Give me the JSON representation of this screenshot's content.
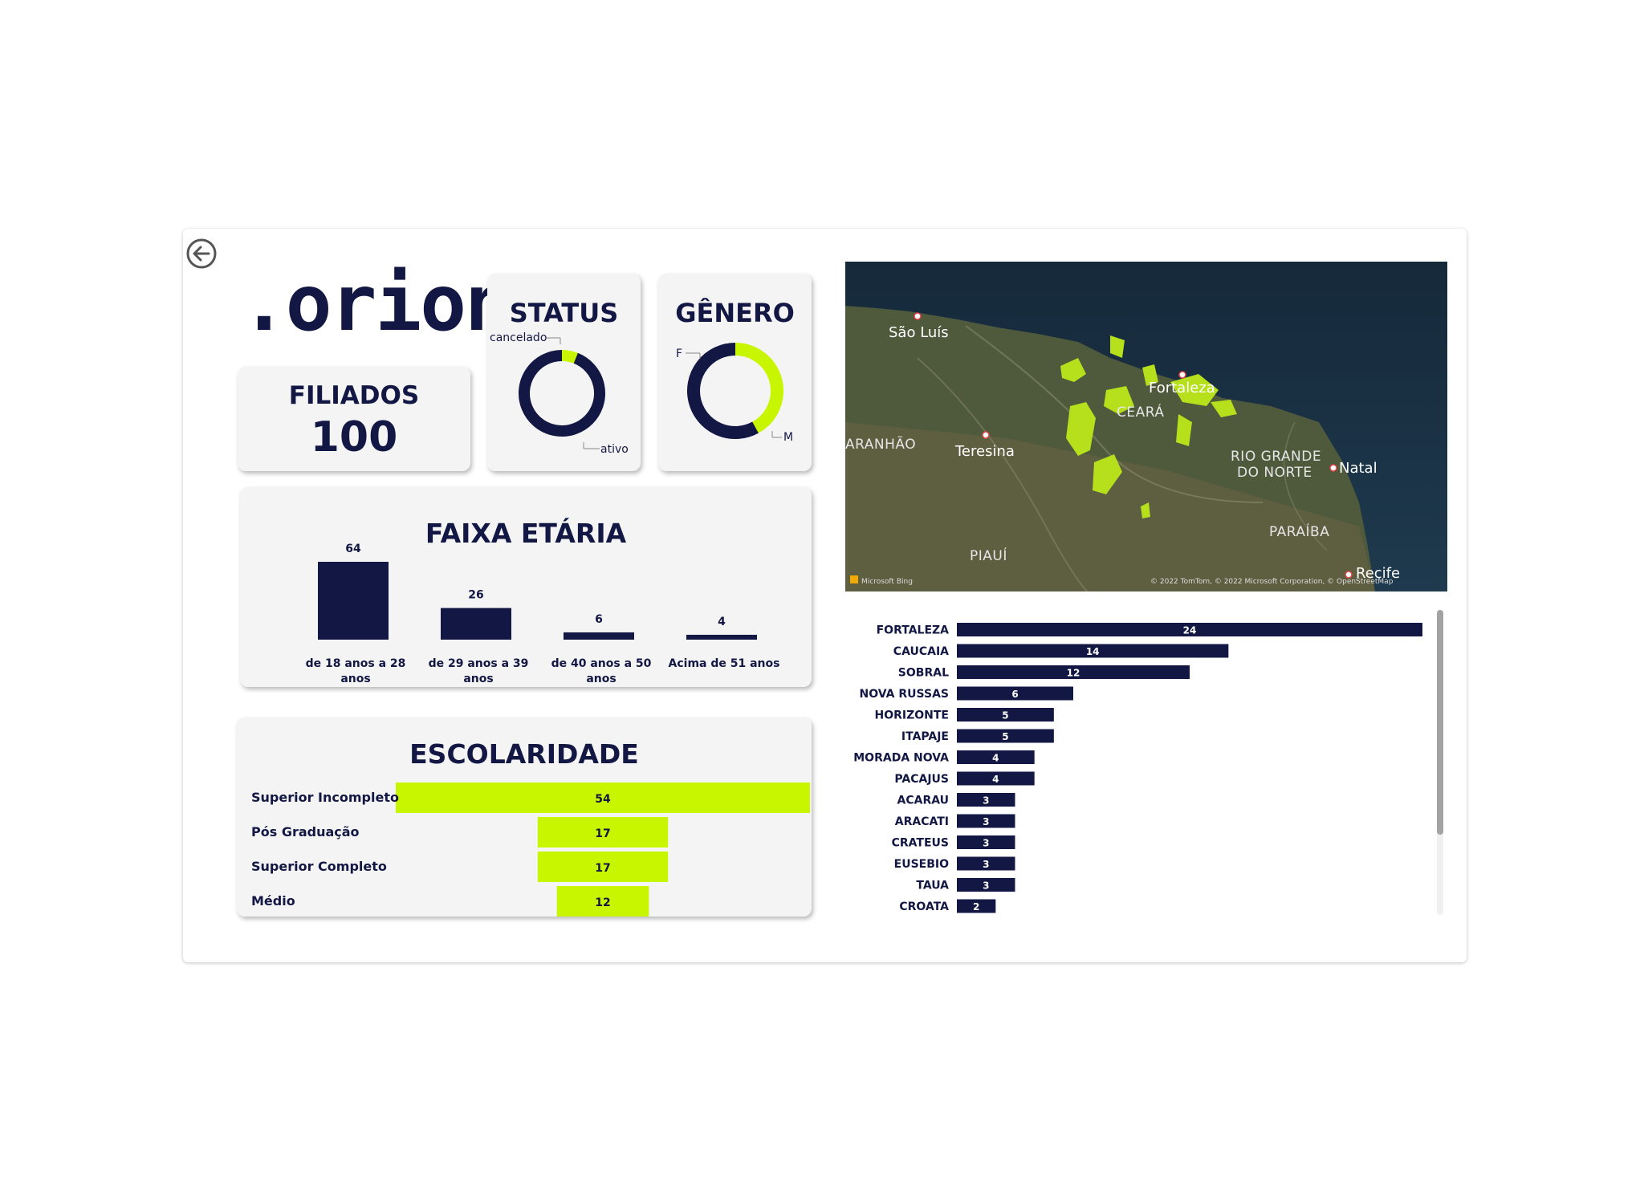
{
  "logo": {
    "text": ".orion"
  },
  "filiados": {
    "title": "FILIADOS",
    "value": "100"
  },
  "status": {
    "title": "STATUS",
    "chart_data": {
      "type": "donut",
      "slices": [
        {
          "label": "cancelado",
          "value": 6,
          "color": "#c8f500"
        },
        {
          "label": "ativo",
          "value": 94,
          "color": "#121744"
        }
      ]
    }
  },
  "genero": {
    "title": "GÊNERO",
    "chart_data": {
      "type": "donut",
      "slices": [
        {
          "label": "F",
          "value": 42,
          "color": "#c8f500"
        },
        {
          "label": "M",
          "value": 58,
          "color": "#121744"
        }
      ]
    }
  },
  "faixa": {
    "title": "FAIXA ETÁRIA",
    "chart_data": {
      "type": "bar",
      "categories": [
        "de 18 anos a 28 anos",
        "de 29 anos a 39 anos",
        "de 40 anos a 50 anos",
        "Acima de 51 anos"
      ],
      "values": [
        64,
        26,
        6,
        4
      ],
      "color": "#121744"
    }
  },
  "escolaridade": {
    "title": "ESCOLARIDADE",
    "chart_data": {
      "type": "funnel",
      "categories": [
        "Superior Incompleto",
        "Pós Graduação",
        "Superior Completo",
        "Médio"
      ],
      "values": [
        54,
        17,
        17,
        12
      ],
      "color": "#c8f500"
    }
  },
  "map": {
    "cities": [
      "São Luís",
      "Fortaleza",
      "Teresina",
      "Natal",
      "Recife"
    ],
    "states": [
      "CEARÁ",
      "ARANHÃO",
      "RIO GRANDE",
      "DO NORTE",
      "PARAÍBA",
      "PIAUÍ"
    ],
    "attribution": "© 2022 TomTom, © 2022 Microsoft Corporation, © OpenStreetMap",
    "brand": "Microsoft Bing"
  },
  "cidades": {
    "chart_data": {
      "type": "bar",
      "orientation": "horizontal",
      "categories": [
        "FORTALEZA",
        "CAUCAIA",
        "SOBRAL",
        "NOVA RUSSAS",
        "HORIZONTE",
        "ITAPAJE",
        "MORADA NOVA",
        "PACAJUS",
        "ACARAU",
        "ARACATI",
        "CRATEUS",
        "EUSEBIO",
        "TAUA",
        "CROATA"
      ],
      "values": [
        24,
        14,
        12,
        6,
        5,
        5,
        4,
        4,
        3,
        3,
        3,
        3,
        3,
        2
      ],
      "color": "#121744"
    }
  },
  "colors": {
    "navy": "#121744",
    "lime": "#c8f500",
    "card": "#f4f4f4"
  }
}
